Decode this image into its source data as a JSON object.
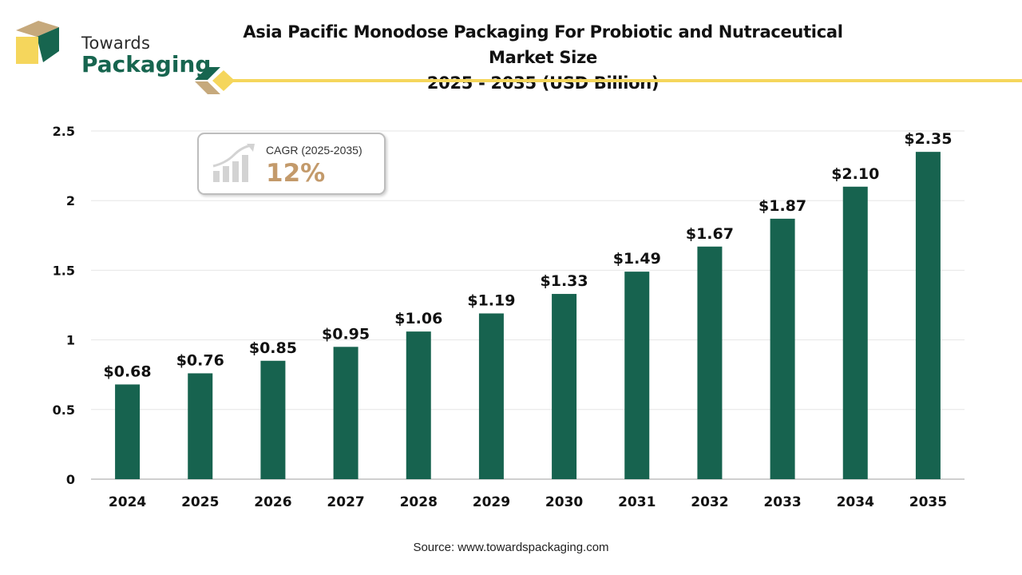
{
  "logo": {
    "line1": "Towards",
    "line2": "Packaging"
  },
  "title_line1": "Asia Pacific Monodose Packaging For Probiotic and Nutraceutical Market Size",
  "title_line2": "2025 - 2035 (USD Billion)",
  "cagr": {
    "label": "CAGR (2025-2035)",
    "value": "12%"
  },
  "source": "Source: www.towardspackaging.com",
  "colors": {
    "bar": "#17634f",
    "accent": "#f5d65c",
    "logo_green": "#17654f",
    "logo_tan": "#c6a97c",
    "cagr_value": "#c39a6b"
  },
  "chart_data": {
    "type": "bar",
    "categories": [
      "2024",
      "2025",
      "2026",
      "2027",
      "2028",
      "2029",
      "2030",
      "2031",
      "2032",
      "2033",
      "2034",
      "2035"
    ],
    "values": [
      0.68,
      0.76,
      0.85,
      0.95,
      1.06,
      1.19,
      1.33,
      1.49,
      1.67,
      1.87,
      2.1,
      2.35
    ],
    "data_labels": [
      "$0.68",
      "$0.76",
      "$0.85",
      "$0.95",
      "$1.06",
      "$1.19",
      "$1.33",
      "$1.49",
      "$1.67",
      "$1.87",
      "$2.10",
      "$2.35"
    ],
    "yticks": [
      "0",
      "0.5",
      "1",
      "1.5",
      "2",
      "2.5"
    ],
    "ylim": [
      0,
      2.5
    ],
    "xlabel": "",
    "ylabel": "",
    "grid": true,
    "legend": "none"
  }
}
